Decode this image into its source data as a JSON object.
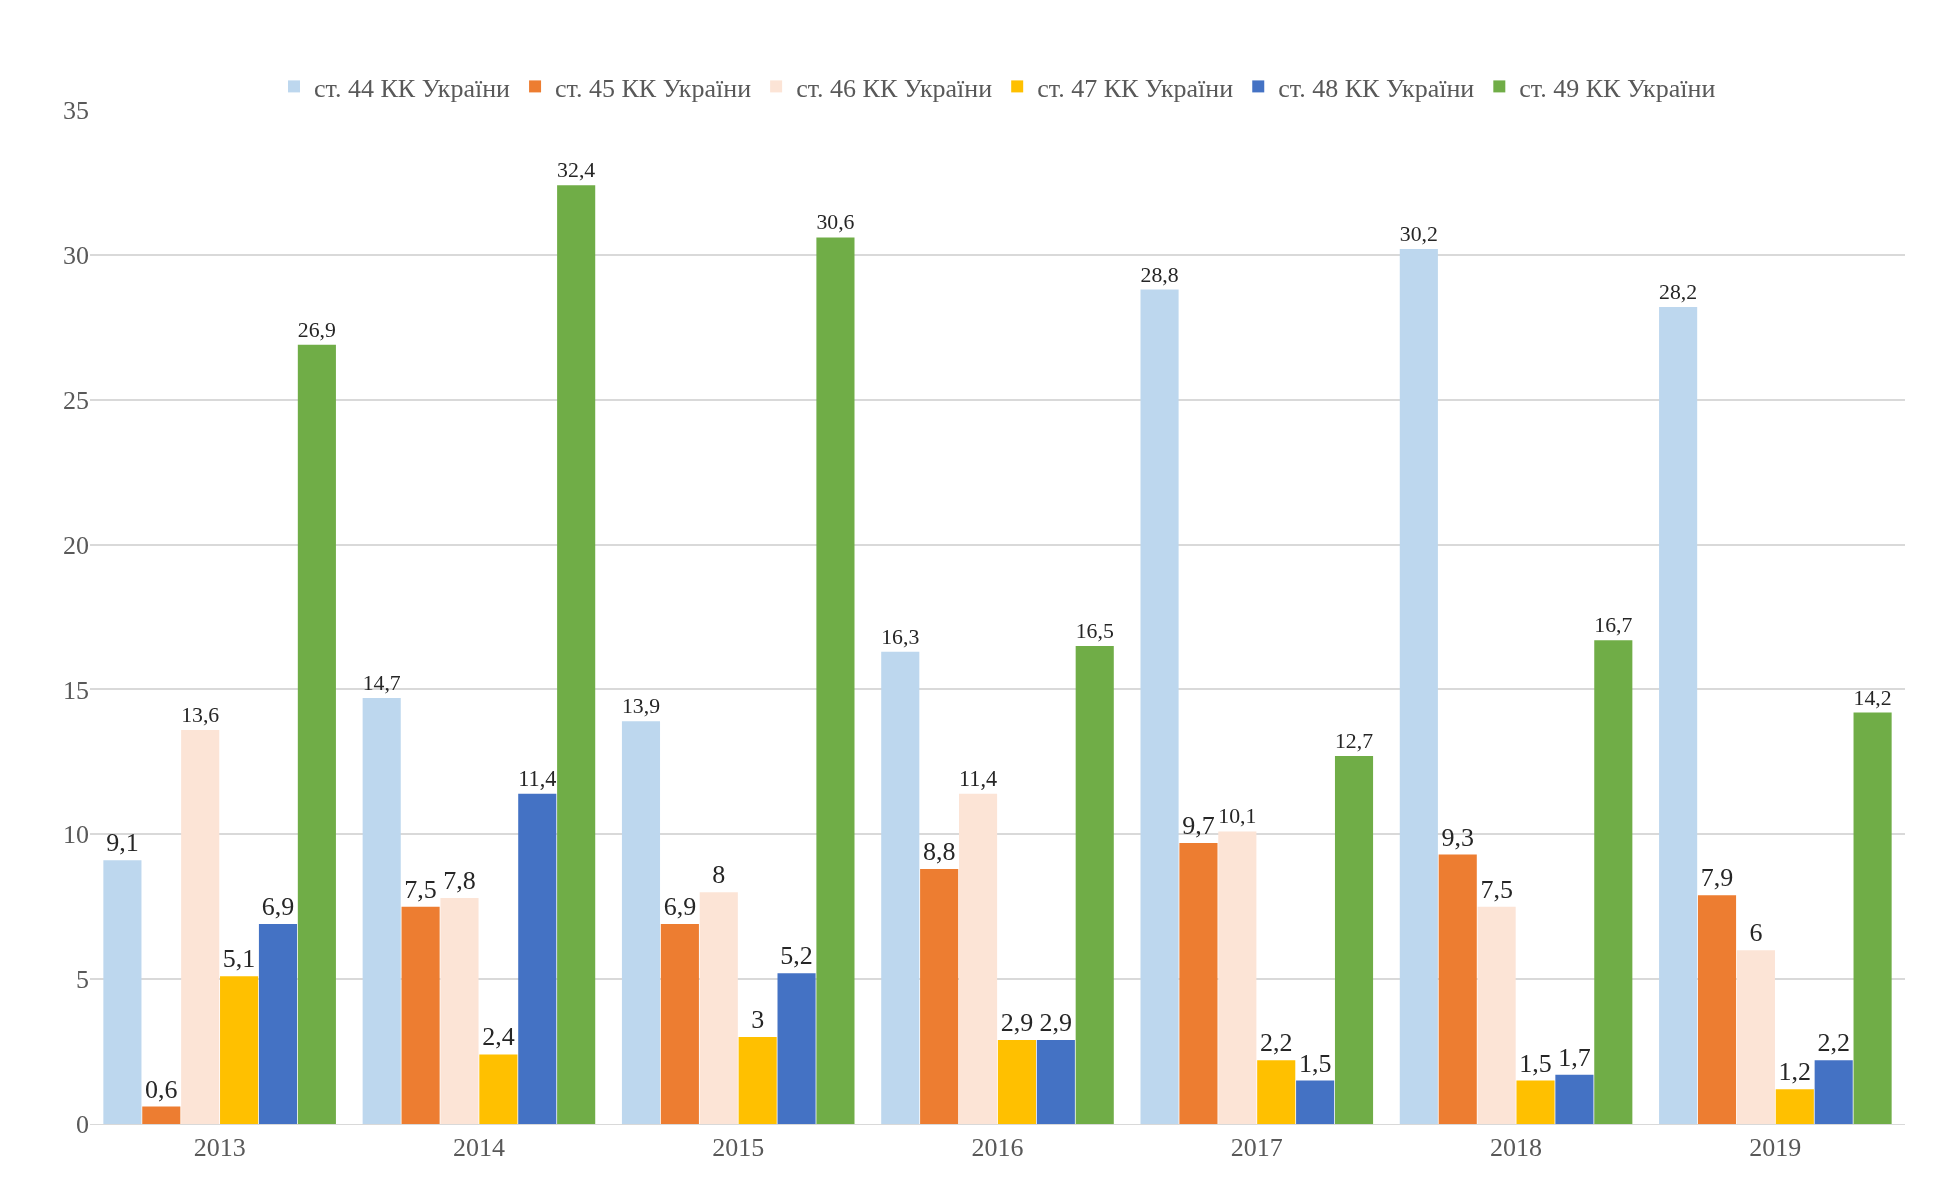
{
  "chart_data": {
    "type": "bar",
    "categories": [
      "2013",
      "2014",
      "2015",
      "2016",
      "2017",
      "2018",
      "2019"
    ],
    "series": [
      {
        "name": "ст. 44 КК України",
        "color": "#bdd7ee",
        "values": [
          9.1,
          14.7,
          13.9,
          16.3,
          28.8,
          30.2,
          28.2
        ],
        "value_labels": [
          "9,1",
          "14,7",
          "13,9",
          "16,3",
          "28,8",
          "30,2",
          "28,2"
        ]
      },
      {
        "name": "ст. 45 КК України",
        "color": "#ed7d31",
        "values": [
          0.6,
          7.5,
          6.9,
          8.8,
          9.7,
          9.3,
          7.9
        ],
        "value_labels": [
          "0,6",
          "7,5",
          "6,9",
          "8,8",
          "9,7",
          "9,3",
          "7,9"
        ]
      },
      {
        "name": "ст. 46 КК України",
        "color": "#fce4d6",
        "values": [
          13.6,
          7.8,
          8,
          11.4,
          10.1,
          7.5,
          6
        ],
        "value_labels": [
          "13,6",
          "7,8",
          "8",
          "11,4",
          "10,1",
          "7,5",
          "6"
        ]
      },
      {
        "name": "ст. 47 КК України",
        "color": "#ffc000",
        "values": [
          5.1,
          2.4,
          3,
          2.9,
          2.2,
          1.5,
          1.2
        ],
        "value_labels": [
          "5,1",
          "2,4",
          "3",
          "2,9",
          "2,2",
          "1,5",
          "1,2"
        ]
      },
      {
        "name": "ст. 48 КК України",
        "color": "#4472c4",
        "values": [
          6.9,
          11.4,
          5.2,
          2.9,
          1.5,
          1.7,
          2.2
        ],
        "value_labels": [
          "6,9",
          "11,4",
          "5,2",
          "2,9",
          "1,5",
          "1,7",
          "2,2"
        ]
      },
      {
        "name": "ст. 49 КК України",
        "color": "#70ad47",
        "values": [
          26.9,
          32.4,
          30.6,
          16.5,
          12.7,
          16.7,
          14.2
        ],
        "value_labels": [
          "26,9",
          "32,4",
          "30,6",
          "16,5",
          "12,7",
          "16,7",
          "14,2"
        ]
      }
    ],
    "ylim": [
      0,
      35
    ],
    "yticks": [
      0,
      5,
      10,
      15,
      20,
      25,
      30,
      35
    ],
    "grid": "y",
    "legend": "top"
  }
}
